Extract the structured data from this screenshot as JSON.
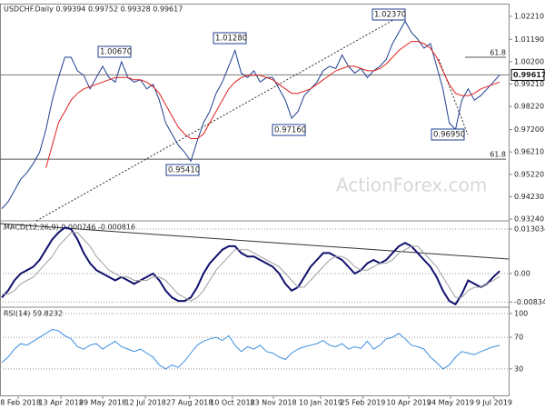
{
  "chart_data": [
    {
      "type": "line",
      "title": "USDCHF.Daily 0.99394 0.99752 0.99328 0.99617",
      "xlim": [
        0,
        80
      ],
      "xticks": [
        {
          "value": 2.6,
          "label": "28 Feb 2018"
        },
        {
          "value": 9.4,
          "label": "13 Apr 2018"
        },
        {
          "value": 16,
          "label": "29 May 2018"
        },
        {
          "value": 22.8,
          "label": "12 Jul 2018"
        },
        {
          "value": 29.8,
          "label": "27 Aug 2018"
        },
        {
          "value": 36.6,
          "label": "10 Oct 2018"
        },
        {
          "value": 43.1,
          "label": "23 Nov 2018"
        },
        {
          "value": 50.6,
          "label": "10 Jan 2019"
        },
        {
          "value": 57.3,
          "label": "25 Feb 2019"
        },
        {
          "value": 64.6,
          "label": "10 Apr 2019"
        },
        {
          "value": 71.2,
          "label": "24 May 2019"
        },
        {
          "value": 78.1,
          "label": "9 Jul 2019"
        }
      ],
      "ylim": [
        0.9316,
        1.0261
      ],
      "yticks": [
        {
          "value": 1.0221,
          "label": "1.02210"
        },
        {
          "value": 1.0119,
          "label": "1.01190"
        },
        {
          "value": 1.002,
          "label": "1.00200"
        },
        {
          "value": 0.9921,
          "label": "0.99210"
        },
        {
          "value": 0.9822,
          "label": "0.98220"
        },
        {
          "value": 0.972,
          "label": "0.97200"
        },
        {
          "value": 0.9621,
          "label": "0.96210"
        },
        {
          "value": 0.9522,
          "label": "0.95220"
        },
        {
          "value": 0.9423,
          "label": "0.94230"
        },
        {
          "value": 0.9324,
          "label": "0.93240"
        }
      ],
      "series": [
        {
          "color": "#1f3f8f",
          "values": [
            0.937,
            0.94,
            0.945,
            0.95,
            0.953,
            0.957,
            0.962,
            0.972,
            0.985,
            0.995,
            1.004,
            1.004,
            0.998,
            0.996,
            0.99,
            0.995,
            1.0,
            0.995,
            0.993,
            1.002,
            0.995,
            0.993,
            0.994,
            0.99,
            0.992,
            0.985,
            0.975,
            0.97,
            0.965,
            0.962,
            0.958,
            0.967,
            0.975,
            0.98,
            0.988,
            0.993,
            1.0,
            1.007,
            0.997,
            0.995,
            0.998,
            0.993,
            0.995,
            0.995,
            0.99,
            0.985,
            0.977,
            0.98,
            0.987,
            0.99,
            0.993,
            0.998,
            1.0,
            0.999,
            1.005,
            1.0,
            0.997,
            0.999,
            0.995,
            0.998,
            1.0,
            1.003,
            1.01,
            1.015,
            1.02,
            1.015,
            1.012,
            1.008,
            1.01,
            1.0,
            0.99,
            0.975,
            0.972,
            0.985,
            0.99,
            0.985,
            0.987,
            0.99,
            0.993,
            0.99617
          ]
        },
        {
          "color": "#e02020",
          "values": [
            null,
            null,
            null,
            null,
            null,
            null,
            null,
            0.955,
            0.965,
            0.975,
            0.98,
            0.985,
            0.988,
            0.99,
            0.991,
            0.992,
            0.993,
            0.994,
            0.995,
            0.995,
            0.995,
            0.994,
            0.994,
            0.993,
            0.991,
            0.988,
            0.983,
            0.978,
            0.973,
            0.97,
            0.968,
            0.968,
            0.97,
            0.975,
            0.98,
            0.985,
            0.99,
            0.993,
            0.995,
            0.996,
            0.996,
            0.996,
            0.995,
            0.994,
            0.992,
            0.99,
            0.988,
            0.988,
            0.989,
            0.99,
            0.992,
            0.994,
            0.996,
            0.998,
            0.999,
            1.0,
            1.0,
            0.999,
            0.998,
            0.998,
            0.999,
            1.001,
            1.004,
            1.007,
            1.009,
            1.011,
            1.011,
            1.01,
            1.008,
            1.004,
            0.998,
            0.992,
            0.988,
            0.987,
            0.987,
            0.988,
            0.99,
            0.991,
            0.992,
            0.993
          ]
        }
      ],
      "levels": [
        {
          "value": 1.004,
          "label": "61.8"
        },
        {
          "value": 0.9589,
          "label": "61.8"
        }
      ],
      "annotations": [
        "1.00670",
        "1.01280",
        "0.95410",
        "0.97160",
        "1.02370",
        "0.96950"
      ],
      "watermark": "ActionForex.com"
    },
    {
      "type": "line",
      "title": "MACD(12,26,9) 0.000746 -0.000816",
      "ylim": [
        -0.00984,
        0.01516
      ],
      "yticks": [
        0.013034,
        {
          "value": 0,
          "label": "0.00"
        },
        -0.00834
      ],
      "series": [
        {
          "color": "#10106e",
          "values": [
            -0.007,
            -0.005,
            -0.002,
            0.0,
            0.001,
            0.002,
            0.004,
            0.007,
            0.01,
            0.012,
            0.0135,
            0.013,
            0.01,
            0.006,
            0.003,
            0.001,
            0.0,
            -0.001,
            -0.002,
            -0.001,
            -0.002,
            -0.003,
            -0.002,
            -0.001,
            0.0,
            -0.002,
            -0.005,
            -0.007,
            -0.008,
            -0.008,
            -0.007,
            -0.004,
            0.0,
            0.003,
            0.005,
            0.007,
            0.008,
            0.008,
            0.006,
            0.005,
            0.005,
            0.004,
            0.003,
            0.002,
            0.0,
            -0.003,
            -0.005,
            -0.004,
            -0.001,
            0.002,
            0.004,
            0.006,
            0.006,
            0.005,
            0.004,
            0.002,
            0.0,
            0.001,
            0.003,
            0.004,
            0.003,
            0.004,
            0.006,
            0.008,
            0.009,
            0.008,
            0.006,
            0.004,
            0.002,
            -0.001,
            -0.005,
            -0.008,
            -0.009,
            -0.006,
            -0.002,
            -0.003,
            -0.004,
            -0.003,
            -0.001,
            0.000746
          ]
        },
        {
          "color": "#a0a0a0",
          "values": [
            -0.006,
            -0.006,
            -0.005,
            -0.003,
            -0.002,
            -0.001,
            0.001,
            0.003,
            0.005,
            0.008,
            0.01,
            0.012,
            0.012,
            0.01,
            0.008,
            0.005,
            0.003,
            0.001,
            0.0,
            -0.001,
            -0.001,
            -0.002,
            -0.002,
            -0.002,
            -0.001,
            -0.001,
            -0.002,
            -0.004,
            -0.006,
            -0.007,
            -0.008,
            -0.007,
            -0.005,
            -0.002,
            0.001,
            0.003,
            0.005,
            0.007,
            0.007,
            0.007,
            0.006,
            0.005,
            0.004,
            0.003,
            0.002,
            0.0,
            -0.002,
            -0.004,
            -0.004,
            -0.002,
            0.0,
            0.002,
            0.004,
            0.005,
            0.005,
            0.004,
            0.002,
            0.001,
            0.001,
            0.002,
            0.003,
            0.003,
            0.004,
            0.006,
            0.007,
            0.008,
            0.008,
            0.006,
            0.004,
            0.002,
            -0.001,
            -0.004,
            -0.007,
            -0.007,
            -0.005,
            -0.004,
            -0.004,
            -0.003,
            -0.002,
            -0.000816
          ]
        }
      ]
    },
    {
      "type": "line",
      "title": "RSI(14) 59.8232",
      "ylim": [
        0,
        100
      ],
      "yticks": [
        100,
        70,
        30
      ],
      "series": [
        {
          "color": "#3d8fe0",
          "values": [
            38,
            45,
            55,
            62,
            60,
            65,
            70,
            75,
            80,
            78,
            72,
            68,
            58,
            55,
            60,
            62,
            55,
            60,
            65,
            58,
            55,
            52,
            55,
            50,
            45,
            35,
            30,
            35,
            32,
            40,
            50,
            60,
            65,
            68,
            70,
            66,
            72,
            60,
            52,
            58,
            55,
            60,
            52,
            50,
            45,
            42,
            50,
            55,
            58,
            60,
            62,
            66,
            60,
            58,
            62,
            55,
            58,
            56,
            65,
            55,
            60,
            68,
            70,
            75,
            68,
            60,
            58,
            55,
            45,
            38,
            30,
            35,
            45,
            52,
            50,
            48,
            52,
            55,
            58,
            59.8232
          ]
        }
      ]
    }
  ]
}
